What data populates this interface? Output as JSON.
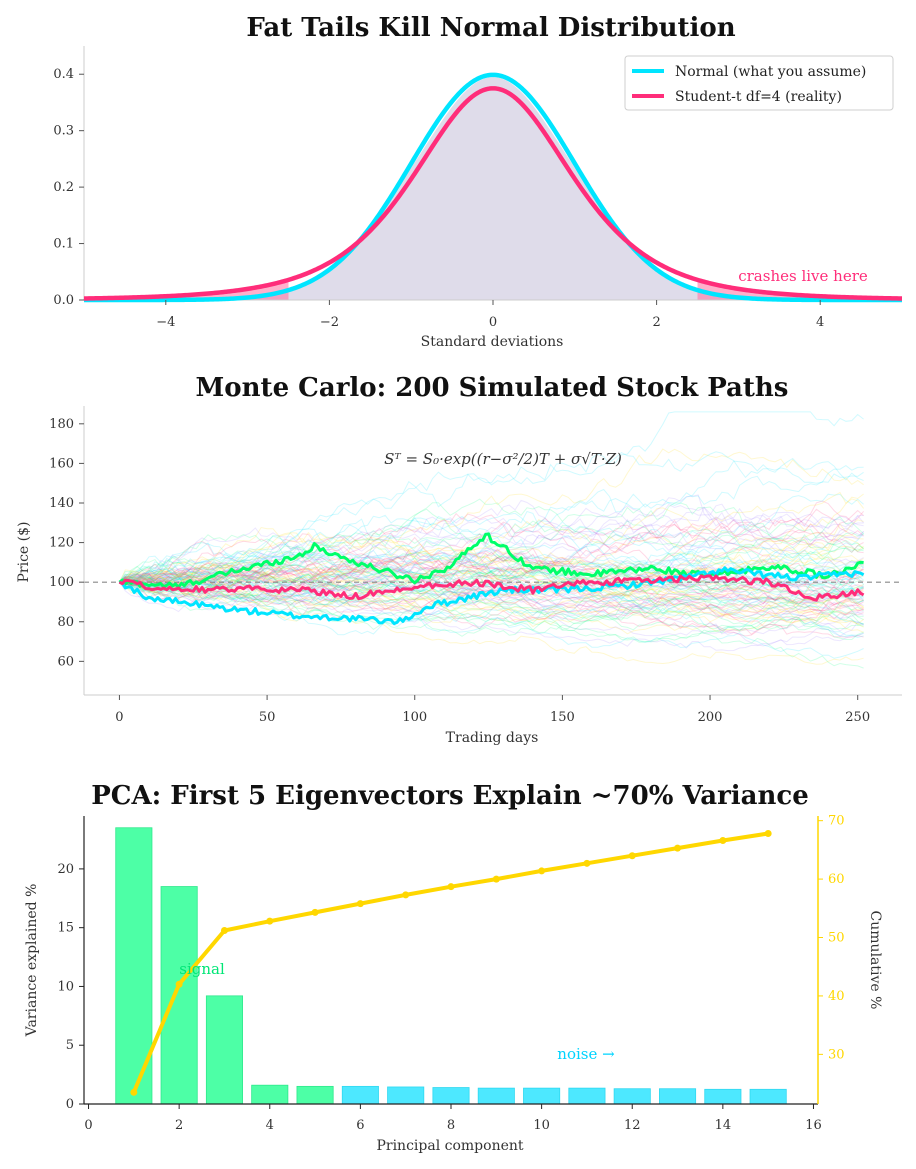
{
  "chart_data": [
    {
      "type": "line",
      "title": "Fat Tails Kill Normal Distribution",
      "xlabel": "Standard deviations",
      "ylabel": "",
      "xlim": [
        -5,
        5
      ],
      "ylim": [
        0,
        0.45
      ],
      "xticks": [
        -4,
        -2,
        0,
        2,
        4
      ],
      "xtick_labels": [
        "−4",
        "−2",
        "0",
        "2",
        "4"
      ],
      "yticks": [
        0,
        0.1,
        0.2,
        0.3,
        0.4
      ],
      "ytick_labels": [
        "0.0",
        "0.1",
        "0.2",
        "0.3",
        "0.4"
      ],
      "series": [
        {
          "name": "Normal (what you assume)",
          "color": "#00e5ff",
          "pdf": "normal",
          "peak": 0.399
        },
        {
          "name": "Student-t df=4 (reality)",
          "color": "#ff2d7a",
          "pdf": "student_t",
          "df": 4,
          "peak": 0.375
        }
      ],
      "tail_threshold": 2.5,
      "legend": "top-right",
      "annotation": "crashes live here",
      "annotation_color": "#ff2d7a",
      "fill_color": "#dcd8e8"
    },
    {
      "type": "line",
      "title": "Monte Carlo: 200 Simulated Stock Paths",
      "xlabel": "Trading days",
      "ylabel": "Price ($)",
      "xlim": [
        -12,
        265
      ],
      "ylim": [
        43,
        189
      ],
      "xticks": [
        0,
        50,
        100,
        150,
        200,
        250
      ],
      "xtick_labels": [
        "0",
        "50",
        "100",
        "150",
        "200",
        "250"
      ],
      "yticks": [
        60,
        80,
        100,
        120,
        140,
        160,
        180
      ],
      "ytick_labels": [
        "60",
        "80",
        "100",
        "120",
        "140",
        "160",
        "180"
      ],
      "formula": "Sᵀ = S₀·exp((r−σ²/2)T + σ√T·Z)",
      "start_price": 100,
      "n_paths": 200,
      "n_days": 252,
      "background_path_colors": [
        "#00e5ff",
        "#ff2d7a",
        "#00ff7f",
        "#ffd700",
        "#9b7bff"
      ],
      "highlighted": [
        {
          "name": "green-path",
          "color": "#00ff6a",
          "days": [
            0,
            20,
            40,
            60,
            66,
            80,
            100,
            112,
            124,
            140,
            160,
            180,
            200,
            220,
            240,
            252
          ],
          "values": [
            100,
            98,
            106,
            113,
            118,
            110,
            101,
            108,
            124,
            107,
            104,
            107,
            103,
            108,
            103,
            109
          ]
        },
        {
          "name": "cyan-path",
          "color": "#00e5ff",
          "days": [
            0,
            10,
            20,
            40,
            60,
            75,
            95,
            105,
            130,
            150,
            170,
            190,
            205,
            230,
            252
          ],
          "values": [
            100,
            92,
            90,
            86,
            83,
            82,
            80,
            88,
            96,
            96,
            98,
            102,
            106,
            102,
            105
          ]
        },
        {
          "name": "pink-path",
          "color": "#ff2d7a",
          "days": [
            0,
            20,
            40,
            60,
            80,
            100,
            120,
            140,
            160,
            180,
            200,
            220,
            235,
            252
          ],
          "values": [
            100,
            96,
            97,
            96,
            93,
            98,
            100,
            96,
            100,
            101,
            102,
            100,
            92,
            95
          ]
        }
      ],
      "reference_line": 100
    },
    {
      "type": "bar",
      "title": "PCA: First 5 Eigenvectors Explain ~70% Variance",
      "xlabel": "Principal component",
      "ylabel": "Variance explained %",
      "y2label": "Cumulative %",
      "xlim": [
        -0.1,
        16.1
      ],
      "ylim": [
        0,
        24.5
      ],
      "y2lim": [
        21.5,
        70.8
      ],
      "xticks": [
        0,
        2,
        4,
        6,
        8,
        10,
        12,
        14,
        16
      ],
      "xtick_labels": [
        "0",
        "2",
        "4",
        "6",
        "8",
        "10",
        "12",
        "14",
        "16"
      ],
      "yticks": [
        0,
        5,
        10,
        15,
        20
      ],
      "ytick_labels": [
        "0",
        "5",
        "10",
        "15",
        "20"
      ],
      "y2ticks": [
        30,
        40,
        50,
        60,
        70
      ],
      "y2tick_labels": [
        "30",
        "40",
        "50",
        "60",
        "70"
      ],
      "categories": [
        1,
        2,
        3,
        4,
        5,
        6,
        7,
        8,
        9,
        10,
        11,
        12,
        13,
        14,
        15
      ],
      "values": [
        23.5,
        18.5,
        9.2,
        1.6,
        1.5,
        1.5,
        1.45,
        1.4,
        1.35,
        1.35,
        1.35,
        1.3,
        1.3,
        1.25,
        1.25
      ],
      "cumulative": [
        23.5,
        42.0,
        51.2,
        52.8,
        54.3,
        55.8,
        57.3,
        58.7,
        60.0,
        61.4,
        62.7,
        64.0,
        65.3,
        66.6,
        67.8
      ],
      "signal_color": "#4dffa6",
      "noise_color": "#4de8ff",
      "line_color": "#ffd700",
      "annotations": [
        {
          "text": "signal",
          "color": "#00e676"
        },
        {
          "text": "noise →",
          "color": "#00d4ff"
        }
      ]
    }
  ]
}
